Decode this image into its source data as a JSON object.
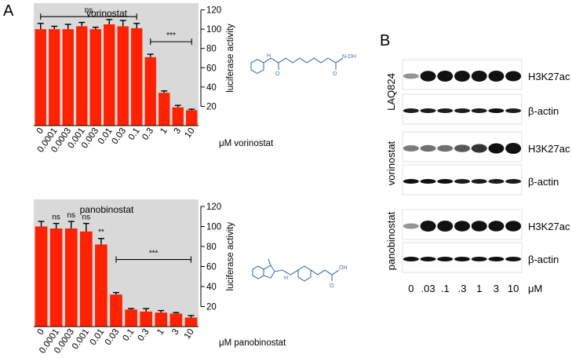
{
  "panel_labels": {
    "a": "A",
    "b": "B"
  },
  "colors": {
    "bar": "#ff2200",
    "panel_bg": "#d9d9d9",
    "axis": "#000000",
    "compound_blue": "#4a6fb0",
    "band": "#111111"
  },
  "chart_data": [
    {
      "type": "bar",
      "title": "vorinostat",
      "xlabel": "μM vorinostat",
      "ylabel": "luciferase activity",
      "categories": [
        "0",
        "0.0001",
        "0.0003",
        "0.001",
        "0.003",
        "0.01",
        "0.03",
        "0.1",
        "0.3",
        "1",
        "3",
        "10"
      ],
      "values": [
        100,
        100,
        100,
        103,
        100,
        105,
        103,
        101,
        71,
        34,
        19,
        16
      ],
      "errors": [
        6,
        3,
        5,
        4,
        2,
        5,
        6,
        5,
        3,
        2,
        2,
        1
      ],
      "ylim": [
        0,
        127
      ],
      "yticks": [
        20,
        40,
        60,
        80,
        100,
        120
      ],
      "y_axis_side": "right",
      "grid": false,
      "annotations": [
        {
          "type": "bracket",
          "text": "ns",
          "from": 0,
          "to": 7,
          "y": 113
        },
        {
          "type": "bracket",
          "text": "***",
          "from": 8,
          "to": 11,
          "y": 87
        }
      ]
    },
    {
      "type": "bar",
      "title": "panobinostat",
      "xlabel": "μM panobinostat",
      "ylabel": "luciferase activity",
      "categories": [
        "0",
        "0.0001",
        "0.0003",
        "0.001",
        "0.01",
        "0.03",
        "0.1",
        "0.3",
        "1",
        "3",
        "10"
      ],
      "values": [
        100,
        98,
        98,
        95,
        82,
        32,
        17,
        15,
        14,
        13,
        9
      ],
      "errors": [
        5,
        5,
        7,
        8,
        6,
        2,
        1,
        3,
        2,
        1,
        2
      ],
      "ylim": [
        0,
        127
      ],
      "yticks": [
        20,
        40,
        60,
        80,
        100,
        120
      ],
      "y_axis_side": "right",
      "grid": false,
      "annotations": [
        {
          "type": "label",
          "text": "ns",
          "at": 1
        },
        {
          "type": "label",
          "text": "ns",
          "at": 2
        },
        {
          "type": "label",
          "text": "ns",
          "at": 3
        },
        {
          "type": "label",
          "text": "**",
          "at": 4
        },
        {
          "type": "bracket",
          "text": "***",
          "from": 5,
          "to": 10,
          "y": 67
        }
      ]
    }
  ],
  "structures": {
    "vorinostat_label": "N-OH",
    "panobinostat_label": "OH"
  },
  "blot": {
    "lane_labels": [
      "0",
      ".03",
      ".1",
      ".3",
      "1",
      "3",
      "10"
    ],
    "unit": "μM",
    "groups": [
      {
        "label": "LAQ824",
        "rows": [
          {
            "label": "H3K27ac",
            "intensities": [
              0.3,
              0.95,
              1.0,
              1.0,
              1.0,
              1.0,
              0.9
            ]
          },
          {
            "label": "β-actin",
            "intensities": [
              0.8,
              0.8,
              0.8,
              0.8,
              0.8,
              0.85,
              0.8
            ]
          }
        ]
      },
      {
        "label": "vorinostat",
        "rows": [
          {
            "label": "H3K27ac",
            "intensities": [
              0.4,
              0.45,
              0.45,
              0.55,
              0.7,
              0.9,
              1.0
            ]
          },
          {
            "label": "β-actin",
            "intensities": [
              0.9,
              0.9,
              0.9,
              0.8,
              0.8,
              0.8,
              0.8
            ]
          }
        ]
      },
      {
        "label": "panobinostat",
        "rows": [
          {
            "label": "H3K27ac",
            "intensities": [
              0.3,
              1.0,
              1.0,
              0.95,
              0.95,
              0.95,
              0.95
            ]
          },
          {
            "label": "β-actin",
            "intensities": [
              0.85,
              0.85,
              0.85,
              0.85,
              0.85,
              0.85,
              0.85
            ]
          }
        ]
      }
    ]
  }
}
